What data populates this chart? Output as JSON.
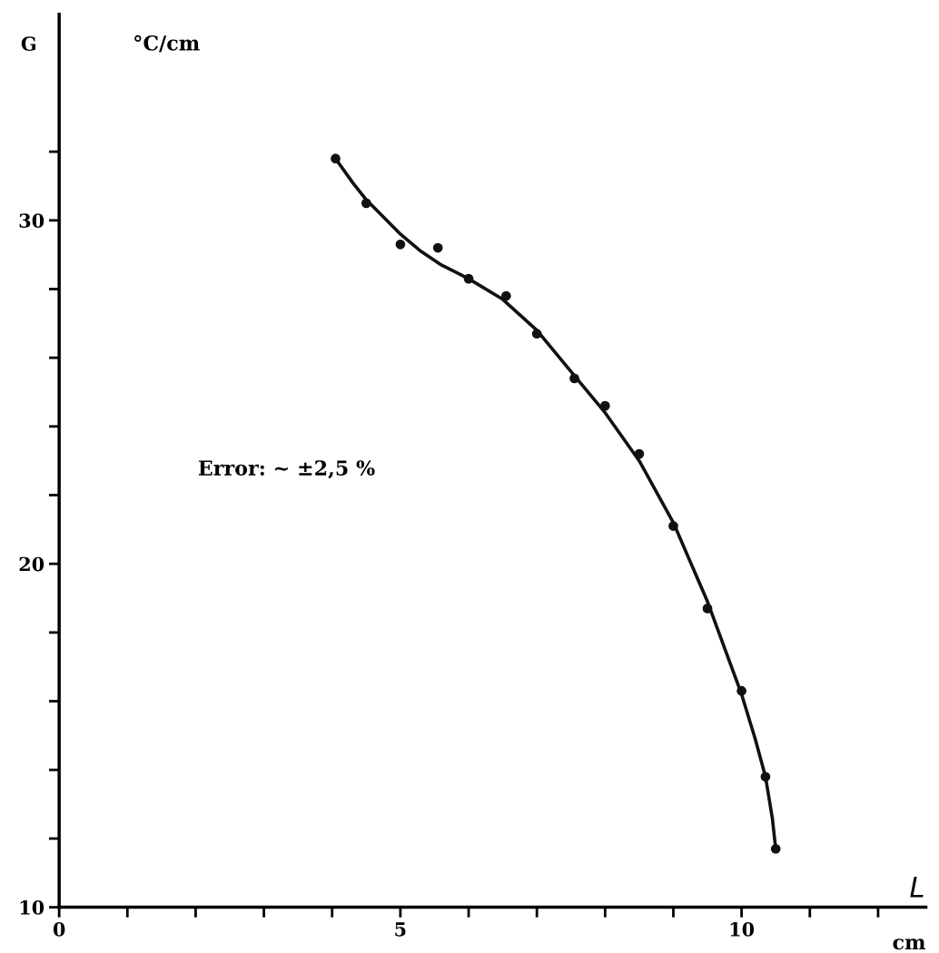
{
  "chart_data": {
    "type": "scatter",
    "xlabel": "L",
    "ylabel": "G",
    "annotations": [
      "°C/cm",
      "cm",
      "Error: ~ ±2,5 %"
    ],
    "xlim": [
      0,
      12.7
    ],
    "ylim": [
      10,
      36
    ],
    "xticks": [
      0,
      {
        "value": 1,
        "label": null
      },
      {
        "value": 2,
        "label": null
      },
      {
        "value": 3,
        "label": null
      },
      {
        "value": 4,
        "label": null
      },
      5,
      {
        "value": 6,
        "label": null
      },
      {
        "value": 7,
        "label": null
      },
      {
        "value": 8,
        "label": null
      },
      {
        "value": 9,
        "label": null
      },
      10,
      {
        "value": 11,
        "label": null
      },
      {
        "value": 12,
        "label": null
      }
    ],
    "yticks": [
      10,
      {
        "value": 12,
        "label": null
      },
      {
        "value": 14,
        "label": null
      },
      {
        "value": 16,
        "label": null
      },
      {
        "value": 18,
        "label": null
      },
      20,
      {
        "value": 22,
        "label": null
      },
      {
        "value": 24,
        "label": null
      },
      {
        "value": 26,
        "label": null
      },
      {
        "value": 28,
        "label": null
      },
      30,
      {
        "value": 32,
        "label": null
      }
    ],
    "grid": false,
    "legend": false,
    "series": [
      {
        "color": "#111111",
        "marker": "circle",
        "x": [
          4.05,
          4.5,
          5.0,
          5.55,
          6.0,
          6.55,
          7.0,
          7.55,
          8.0,
          8.5,
          9.0,
          9.5,
          10.0,
          10.35,
          10.5
        ],
        "values": [
          31.8,
          30.5,
          29.3,
          29.2,
          28.3,
          27.8,
          26.7,
          25.4,
          24.6,
          23.2,
          21.1,
          18.7,
          16.3,
          13.8,
          11.7
        ]
      },
      {
        "type": "line",
        "color": "#111111",
        "marker": "none",
        "line_style": "solid",
        "x": [
          4.05,
          4.3,
          4.5,
          4.8,
          5.0,
          5.3,
          5.6,
          6.0,
          6.5,
          7.0,
          7.5,
          8.0,
          8.5,
          9.0,
          9.5,
          10.0,
          10.2,
          10.35,
          10.45,
          10.5
        ],
        "values": [
          31.8,
          31.1,
          30.6,
          30.0,
          29.6,
          29.1,
          28.7,
          28.3,
          27.7,
          26.8,
          25.6,
          24.4,
          23.0,
          21.2,
          18.9,
          16.2,
          14.9,
          13.8,
          12.6,
          11.7
        ]
      }
    ]
  }
}
